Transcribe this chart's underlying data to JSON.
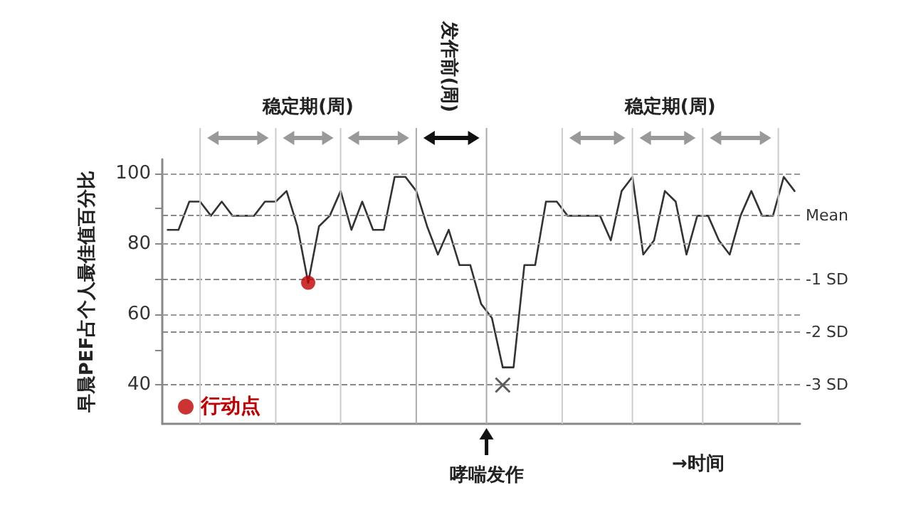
{
  "chart_data": {
    "type": "line",
    "ylabel": "早晨PEF占个人最佳值百分比",
    "xlabel": "→时间",
    "categories": [
      null,
      null,
      null,
      null,
      null,
      null,
      null,
      null,
      null,
      null,
      null,
      null,
      null,
      null,
      null,
      null,
      null,
      null,
      null,
      null,
      null,
      null,
      null,
      null,
      null,
      null,
      null,
      null,
      null,
      null,
      null,
      null,
      null,
      null,
      null,
      null,
      null,
      null,
      null,
      null,
      null,
      null,
      null,
      null,
      null,
      null,
      null,
      null,
      null,
      null,
      null,
      null,
      null,
      null,
      null,
      null,
      null,
      null,
      null
    ],
    "ylim": [
      29,
      104
    ],
    "yticks": [
      40,
      {
        "value": 50,
        "label": null
      },
      60,
      {
        "value": 70,
        "label": null
      },
      80,
      {
        "value": 90,
        "label": null
      },
      100
    ],
    "grid": "x",
    "marker": "none",
    "legend": "bottom left",
    "series": [
      {
        "color": "#333333",
        "values": [
          84,
          84,
          92,
          92,
          88,
          92,
          88,
          88,
          88,
          92,
          92,
          95,
          85,
          69,
          85,
          88,
          95,
          84,
          92,
          84,
          84,
          99,
          99,
          95,
          85,
          77,
          84,
          74,
          74,
          63,
          59,
          45,
          45,
          74,
          74,
          92,
          92,
          88,
          88,
          88,
          88,
          81,
          95,
          99,
          77,
          81,
          95,
          92,
          77,
          88,
          88,
          81,
          77,
          88,
          95,
          88,
          88,
          99,
          95
        ]
      },
      {
        "type": "scatter",
        "name": "行动点",
        "marker": "circle",
        "color": "#c00000",
        "values": [
          null,
          null,
          null,
          null,
          null,
          null,
          null,
          null,
          null,
          null,
          null,
          null,
          null,
          69,
          null,
          null,
          null,
          null,
          null,
          null,
          null,
          null,
          null,
          null,
          null,
          null,
          null,
          null,
          null,
          null,
          null,
          null,
          null,
          null,
          null,
          null,
          null,
          null,
          null,
          null,
          null,
          null,
          null,
          null,
          null,
          null,
          null,
          null,
          null,
          null,
          null,
          null,
          null,
          null,
          null,
          null,
          null,
          null,
          null
        ]
      },
      {
        "type": "scatter",
        "marker": "cross",
        "color": "#333333",
        "values": [
          null,
          null,
          null,
          null,
          null,
          null,
          null,
          null,
          null,
          null,
          null,
          null,
          null,
          null,
          null,
          null,
          null,
          null,
          null,
          null,
          null,
          null,
          null,
          null,
          null,
          null,
          null,
          null,
          null,
          null,
          null,
          40,
          null,
          null,
          null,
          null,
          null,
          null,
          null,
          null,
          null,
          null,
          null,
          null,
          null,
          null,
          null,
          null,
          null,
          null,
          null,
          null,
          null,
          null,
          null,
          null,
          null,
          null,
          null
        ]
      }
    ],
    "ref_lines": [
      {
        "axis": "y",
        "value": 100,
        "color": "#999999",
        "line_style": "dashed"
      },
      {
        "axis": "y",
        "value": 80,
        "color": "#999999",
        "line_style": "dashed"
      },
      {
        "axis": "y",
        "value": 60,
        "color": "#999999",
        "line_style": "dashed"
      },
      {
        "axis": "y",
        "value": 88,
        "label": "Mean",
        "color": "#888888",
        "line_style": "dashed"
      },
      {
        "axis": "y",
        "value": 70,
        "label": "-1 SD",
        "color": "#888888",
        "line_style": "dashed"
      },
      {
        "axis": "y",
        "value": 55,
        "label": "-2 SD",
        "color": "#888888",
        "line_style": "dashed"
      },
      {
        "axis": "y",
        "value": 40,
        "label": "-3 SD",
        "color": "#888888",
        "line_style": "dashed"
      }
    ],
    "annotations": [
      "稳定期(周)",
      "稳定期(周)",
      "发作前(周)",
      "哮喘发作"
    ]
  }
}
